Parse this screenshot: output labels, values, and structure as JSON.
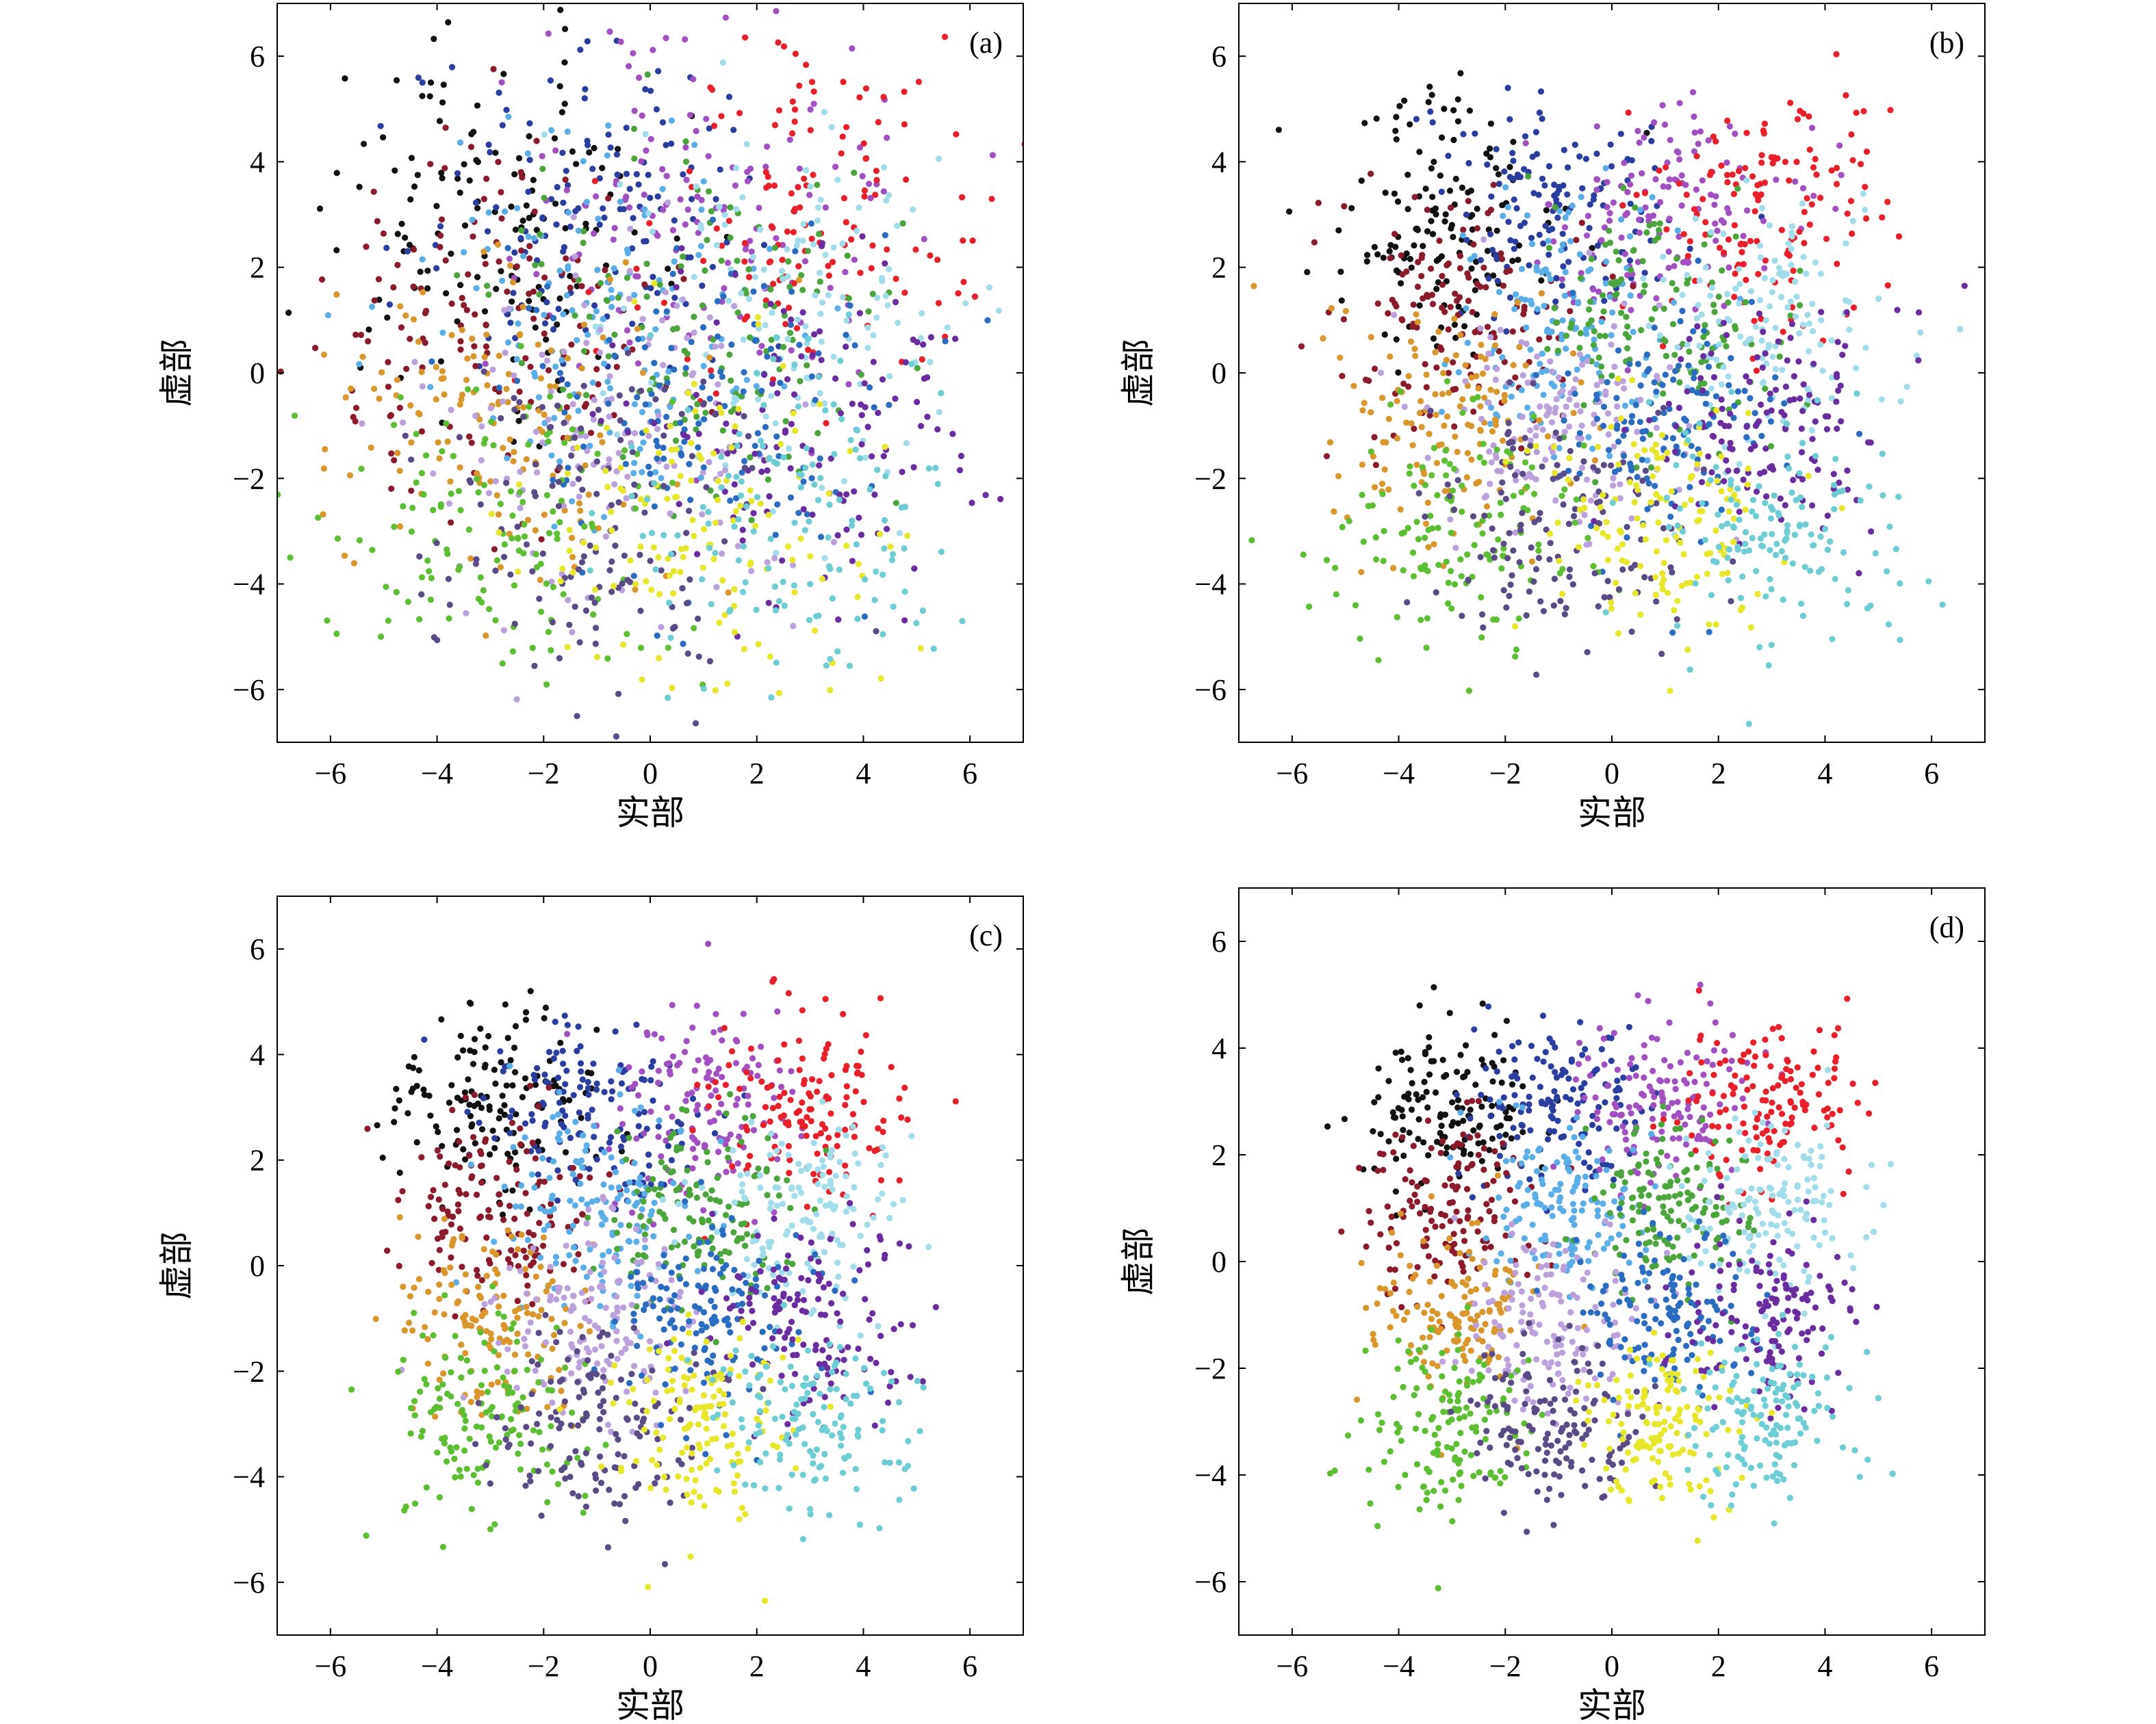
{
  "figure": {
    "background": "#ffffff"
  },
  "colors": {
    "black": "#111111",
    "maroon": "#8b1a2b",
    "orange": "#d9962b",
    "green": "#5cbf32",
    "slate": "#5a4a86",
    "yellow": "#e8e62a",
    "teal": "#6ccdd4",
    "purple": "#6b2ca0",
    "azure": "#2a6cc0",
    "sky": "#5aaee8",
    "olive_green": "#4aa63a",
    "light_cyan": "#a0dcea",
    "navy": "#2a3ea0",
    "violet": "#a24fc2",
    "red": "#e8202a",
    "lavender": "#bca0dc"
  },
  "chart_data": [
    {
      "type": "scatter",
      "panel_label": "(a)",
      "xlabel": "实部",
      "ylabel": "虚部",
      "xlim": [
        -7,
        7
      ],
      "ylim": [
        -7,
        7
      ],
      "xticks": [
        -6,
        -4,
        -2,
        0,
        2,
        4,
        6
      ],
      "yticks": [
        -6,
        -4,
        -2,
        0,
        2,
        4,
        6
      ],
      "xtick_labels": [
        "−6",
        "−4",
        "−2",
        "0",
        "2",
        "4",
        "6"
      ],
      "ytick_labels": [
        "−6",
        "−4",
        "−2",
        "0",
        "2",
        "4",
        "6"
      ],
      "constellation": {
        "grid": [
          -3,
          -1,
          1,
          3
        ],
        "spread": 1.7,
        "points_per_symbol": 140
      }
    },
    {
      "type": "scatter",
      "panel_label": "(b)",
      "xlabel": "实部",
      "ylabel": "虚部",
      "xlim": [
        -7,
        7
      ],
      "ylim": [
        -7,
        7
      ],
      "xticks": [
        -6,
        -4,
        -2,
        0,
        2,
        4,
        6
      ],
      "yticks": [
        -6,
        -4,
        -2,
        0,
        2,
        4,
        6
      ],
      "xtick_labels": [
        "−6",
        "−4",
        "−2",
        "0",
        "2",
        "4",
        "6"
      ],
      "ytick_labels": [
        "−6",
        "−4",
        "−2",
        "0",
        "2",
        "4",
        "6"
      ],
      "constellation": {
        "grid": [
          -3,
          -1,
          1,
          3
        ],
        "spread": 1.15,
        "points_per_symbol": 140
      }
    },
    {
      "type": "scatter",
      "panel_label": "(c)",
      "xlabel": "实部",
      "ylabel": "虚部",
      "xlim": [
        -7,
        7
      ],
      "ylim": [
        -7,
        7
      ],
      "xticks": [
        -6,
        -4,
        -2,
        0,
        2,
        4,
        6
      ],
      "yticks": [
        -6,
        -4,
        -2,
        0,
        2,
        4,
        6
      ],
      "xtick_labels": [
        "−6",
        "−4",
        "−2",
        "0",
        "2",
        "4",
        "6"
      ],
      "ytick_labels": [
        "−6",
        "−4",
        "−2",
        "0",
        "2",
        "4",
        "6"
      ],
      "constellation": {
        "grid": [
          -3,
          -1,
          1,
          3
        ],
        "spread": 0.95,
        "points_per_symbol": 140
      }
    },
    {
      "type": "scatter",
      "panel_label": "(d)",
      "xlabel": "实部",
      "ylabel": "虚部",
      "xlim": [
        -7,
        7
      ],
      "ylim": [
        -7,
        7
      ],
      "xticks": [
        -6,
        -4,
        -2,
        0,
        2,
        4,
        6
      ],
      "yticks": [
        -6,
        -4,
        -2,
        0,
        2,
        4,
        6
      ],
      "xtick_labels": [
        "−6",
        "−4",
        "−2",
        "0",
        "2",
        "4",
        "6"
      ],
      "ytick_labels": [
        "−6",
        "−4",
        "−2",
        "0",
        "2",
        "4",
        "6"
      ],
      "constellation": {
        "grid": [
          -3,
          -1,
          1,
          3
        ],
        "spread": 0.8,
        "points_per_symbol": 140
      }
    }
  ]
}
